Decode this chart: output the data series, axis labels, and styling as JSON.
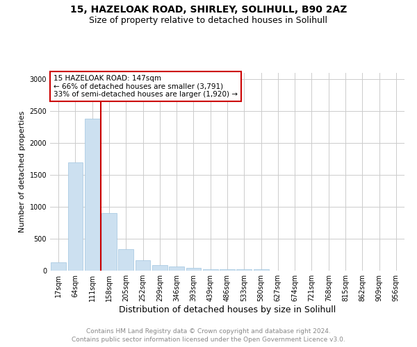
{
  "title1": "15, HAZELOAK ROAD, SHIRLEY, SOLIHULL, B90 2AZ",
  "title2": "Size of property relative to detached houses in Solihull",
  "xlabel": "Distribution of detached houses by size in Solihull",
  "ylabel": "Number of detached properties",
  "bar_labels": [
    "17sqm",
    "64sqm",
    "111sqm",
    "158sqm",
    "205sqm",
    "252sqm",
    "299sqm",
    "346sqm",
    "393sqm",
    "439sqm",
    "486sqm",
    "533sqm",
    "580sqm",
    "627sqm",
    "674sqm",
    "721sqm",
    "768sqm",
    "815sqm",
    "862sqm",
    "909sqm",
    "956sqm"
  ],
  "bar_values": [
    130,
    1700,
    2380,
    900,
    340,
    160,
    90,
    60,
    40,
    20,
    20,
    20,
    20,
    0,
    0,
    0,
    0,
    0,
    0,
    0,
    0
  ],
  "bar_color": "#cce0f0",
  "bar_edge_color": "#a0c4e0",
  "red_line_index": 2,
  "red_line_color": "#cc0000",
  "ylim": [
    0,
    3100
  ],
  "yticks": [
    0,
    500,
    1000,
    1500,
    2000,
    2500,
    3000
  ],
  "annotation_text": "15 HAZELOAK ROAD: 147sqm\n← 66% of detached houses are smaller (3,791)\n33% of semi-detached houses are larger (1,920) →",
  "annotation_box_color": "white",
  "annotation_box_edge_color": "#cc0000",
  "footer1": "Contains HM Land Registry data © Crown copyright and database right 2024.",
  "footer2": "Contains public sector information licensed under the Open Government Licence v3.0.",
  "bg_color": "white",
  "grid_color": "#cccccc",
  "title1_fontsize": 10,
  "title2_fontsize": 9,
  "xlabel_fontsize": 9,
  "ylabel_fontsize": 8,
  "tick_fontsize": 7,
  "annotation_fontsize": 7.5,
  "footer_fontsize": 6.5
}
